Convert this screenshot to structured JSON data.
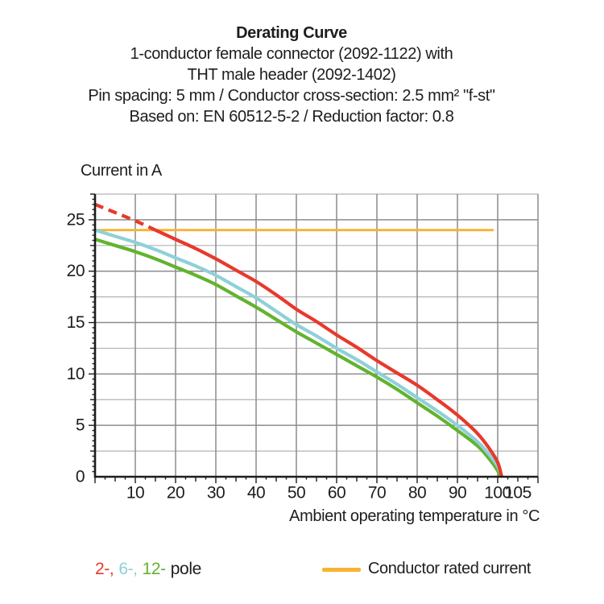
{
  "header": {
    "title": "Derating Curve",
    "lines": [
      "1-conductor female connector (2092-1122) with",
      "THT male header (2092-1402)",
      "Pin spacing: 5 mm / Conductor cross-section: 2.5 mm² \"f-st\"",
      "Based on: EN 60512-5-2 / Reduction factor: 0.8"
    ]
  },
  "chart_data": {
    "type": "line",
    "title": "Derating Curve",
    "xlabel": "Ambient operating temperature in °C",
    "ylabel": "Current in A",
    "xlim": [
      0,
      110
    ],
    "ylim": [
      0,
      27.5
    ],
    "x_tick_labels": [
      10,
      20,
      30,
      40,
      50,
      60,
      70,
      80,
      90,
      100,
      105
    ],
    "y_tick_labels": [
      0,
      5,
      10,
      15,
      20,
      25
    ],
    "x_grid_interval": 10,
    "y_grid_interval": 2.5,
    "grid": true,
    "legend_position": "bottom",
    "series": [
      {
        "name": "2-pole",
        "color": "#e8392b",
        "dashed_until_x": 15,
        "points": [
          [
            0,
            26.5
          ],
          [
            5,
            25.7
          ],
          [
            10,
            24.9
          ],
          [
            15,
            24
          ],
          [
            20,
            23.1
          ],
          [
            25,
            22.2
          ],
          [
            30,
            21.2
          ],
          [
            35,
            20.1
          ],
          [
            40,
            19
          ],
          [
            45,
            17.7
          ],
          [
            50,
            16.3
          ],
          [
            55,
            15.1
          ],
          [
            60,
            13.8
          ],
          [
            65,
            12.6
          ],
          [
            70,
            11.3
          ],
          [
            75,
            10.1
          ],
          [
            80,
            8.9
          ],
          [
            85,
            7.5
          ],
          [
            90,
            6
          ],
          [
            95,
            4.2
          ],
          [
            98,
            2.7
          ],
          [
            100,
            1.4
          ],
          [
            101,
            0
          ]
        ]
      },
      {
        "name": "6-pole",
        "color": "#8fd0d9",
        "points": [
          [
            0,
            24
          ],
          [
            5,
            23.4
          ],
          [
            10,
            22.8
          ],
          [
            15,
            22.1
          ],
          [
            20,
            21.3
          ],
          [
            25,
            20.5
          ],
          [
            30,
            19.6
          ],
          [
            35,
            18.5
          ],
          [
            40,
            17.4
          ],
          [
            45,
            16.1
          ],
          [
            50,
            14.8
          ],
          [
            55,
            13.7
          ],
          [
            60,
            12.5
          ],
          [
            65,
            11.4
          ],
          [
            70,
            10.2
          ],
          [
            75,
            9
          ],
          [
            80,
            7.7
          ],
          [
            85,
            6.4
          ],
          [
            90,
            5
          ],
          [
            95,
            3.4
          ],
          [
            98,
            2.1
          ],
          [
            100,
            1
          ],
          [
            101,
            0
          ]
        ]
      },
      {
        "name": "12-pole",
        "color": "#63b32e",
        "points": [
          [
            0,
            23.1
          ],
          [
            5,
            22.5
          ],
          [
            10,
            21.9
          ],
          [
            15,
            21.2
          ],
          [
            20,
            20.4
          ],
          [
            25,
            19.6
          ],
          [
            30,
            18.7
          ],
          [
            35,
            17.6
          ],
          [
            40,
            16.5
          ],
          [
            45,
            15.3
          ],
          [
            50,
            14.1
          ],
          [
            55,
            13
          ],
          [
            60,
            11.9
          ],
          [
            65,
            10.8
          ],
          [
            70,
            9.7
          ],
          [
            75,
            8.5
          ],
          [
            80,
            7.2
          ],
          [
            85,
            5.9
          ],
          [
            90,
            4.5
          ],
          [
            95,
            3
          ],
          [
            98,
            1.7
          ],
          [
            100,
            0.6
          ],
          [
            100.7,
            0
          ]
        ]
      }
    ],
    "reference_line": {
      "label": "Conductor rated current",
      "color": "#f9b233",
      "y": 24,
      "x_start": 0,
      "x_end": 99
    }
  },
  "legend": {
    "pole_entries": [
      {
        "label": "2-,",
        "color": "#e8392b"
      },
      {
        "label": "6-,",
        "color": "#8fd0d9"
      },
      {
        "label": "12-",
        "color": "#63b32e"
      }
    ],
    "pole_suffix": "pole",
    "rated_label": "Conductor rated current",
    "rated_color": "#f9b233"
  },
  "colors": {
    "text": "#1d1d1b",
    "axis": "#1d1d1b",
    "grid_major": "#8c8c8c",
    "grid_minor": "#b3b3b3",
    "background": "#ffffff"
  }
}
